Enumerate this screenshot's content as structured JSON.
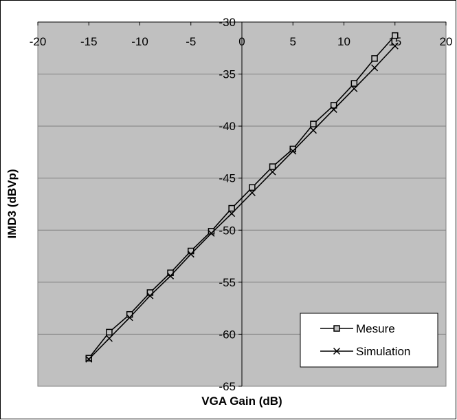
{
  "chart_data": {
    "type": "line",
    "title": "",
    "xlabel": "VGA Gain (dB)",
    "ylabel": "IMD3 (dBVp)",
    "xlim": [
      -20,
      20
    ],
    "ylim": [
      -65,
      -30
    ],
    "xticks": [
      -20,
      -15,
      -10,
      -5,
      0,
      5,
      10,
      15,
      20
    ],
    "yticks": [
      -30,
      -35,
      -40,
      -45,
      -50,
      -55,
      -60,
      -65
    ],
    "grid": "horizontal",
    "plot_background": "#c0c0c0",
    "legend_position": "bottom-right",
    "series": [
      {
        "name": "Mesure",
        "marker": "square",
        "color": "#000000",
        "x": [
          -15,
          -13,
          -11,
          -9,
          -7,
          -5,
          -3,
          -1,
          1,
          3,
          5,
          7,
          9,
          11,
          13,
          15
        ],
        "y": [
          -62.3,
          -59.8,
          -58.1,
          -56.0,
          -54.1,
          -52.0,
          -50.1,
          -47.9,
          -45.9,
          -43.9,
          -42.2,
          -39.8,
          -38.0,
          -35.9,
          -33.5,
          -31.3
        ]
      },
      {
        "name": "Simulation",
        "marker": "x",
        "color": "#000000",
        "x": [
          -15,
          -13,
          -11,
          -9,
          -7,
          -5,
          -3,
          -1,
          1,
          3,
          5,
          7,
          9,
          11,
          13,
          15
        ],
        "y": [
          -62.4,
          -60.4,
          -58.4,
          -56.3,
          -54.4,
          -52.3,
          -50.3,
          -48.4,
          -46.4,
          -44.4,
          -42.4,
          -40.4,
          -38.4,
          -36.4,
          -34.4,
          -32.3
        ]
      }
    ]
  }
}
